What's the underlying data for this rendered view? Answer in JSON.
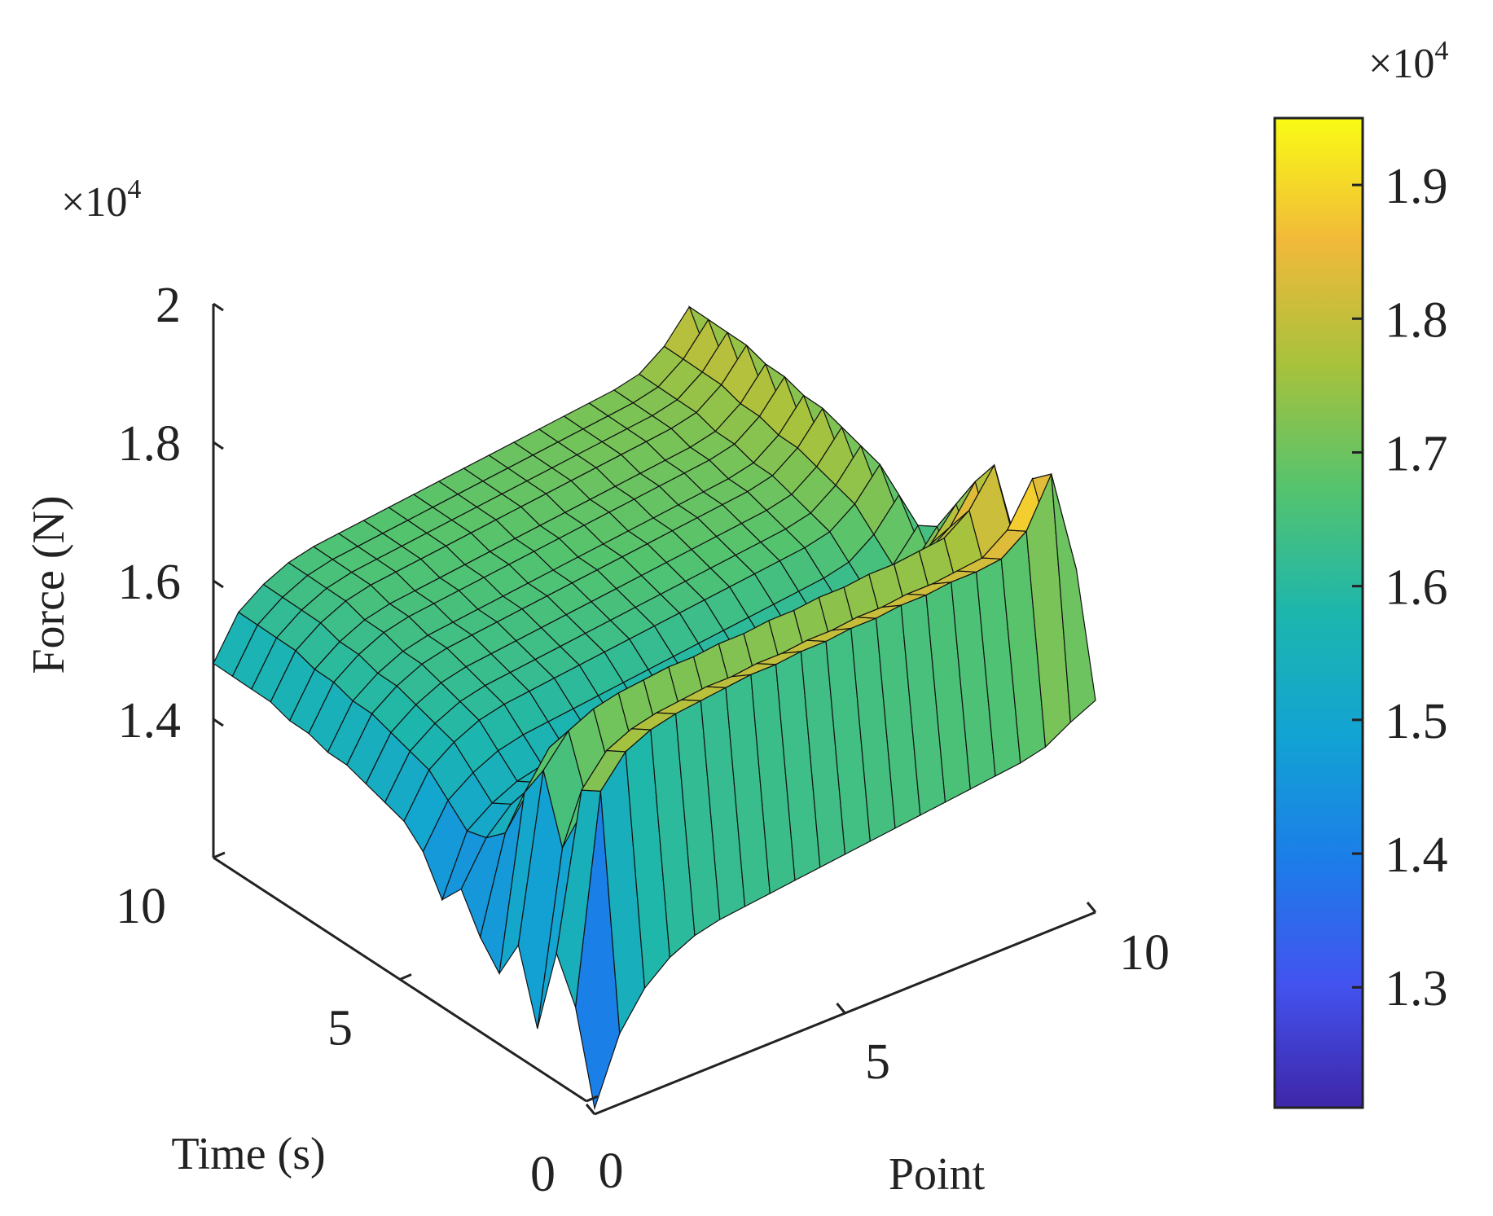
{
  "chart_data": {
    "type": "surface",
    "title": "",
    "xlabel": "Point",
    "ylabel": "Time (s)",
    "zlabel": "Force (N)",
    "xlim": [
      0,
      10
    ],
    "ylim": [
      0,
      10
    ],
    "zlim": [
      12000,
      20000
    ],
    "x_ticks": [
      "0",
      "5",
      "10"
    ],
    "y_ticks": [
      "0",
      "5",
      "10"
    ],
    "z_ticks": [
      "1.4",
      "1.6",
      "1.8",
      "2"
    ],
    "z_multiplier": "×10",
    "z_multiplier_exp": "4",
    "colormap": "parula",
    "colorbar": {
      "range": [
        12100,
        19500
      ],
      "ticks": [
        "1.3",
        "1.4",
        "1.5",
        "1.6",
        "1.7",
        "1.8",
        "1.9"
      ],
      "multiplier": "×10",
      "multiplier_exp": "4"
    },
    "point_values": [
      0,
      0.5,
      1,
      1.5,
      2,
      2.5,
      3,
      3.5,
      4,
      4.5,
      5,
      5.5,
      6,
      6.5,
      7,
      7.5,
      8,
      8.5,
      9,
      9.5,
      10
    ],
    "time_values": [
      0,
      0.5,
      1,
      1.5,
      2,
      2.5,
      3,
      3.5,
      4,
      4.5,
      5,
      5.5,
      6,
      6.5,
      7,
      7.5,
      8,
      8.5,
      9,
      9.5,
      10
    ],
    "force_values": [
      [
        12100,
        13200,
        13800,
        14150,
        14350,
        14450,
        14500,
        14550,
        14600,
        14650,
        14700,
        14750,
        14800,
        14850,
        14900,
        14950,
        15000,
        15050,
        15150,
        15400,
        15600
      ],
      [
        13600,
        17100,
        17600,
        17800,
        17900,
        17950,
        18000,
        18050,
        18050,
        18100,
        18100,
        18150,
        18150,
        18200,
        18200,
        18250,
        18250,
        18300,
        18600,
        19400,
        17600
      ],
      [
        14300,
        16900,
        17400,
        17600,
        17700,
        17750,
        17800,
        17800,
        17850,
        17850,
        17900,
        17900,
        17950,
        17950,
        18000,
        18000,
        18050,
        18100,
        18400,
        19100,
        17400
      ],
      [
        12800,
        15700,
        16300,
        16500,
        16600,
        16650,
        16700,
        16700,
        16750,
        16750,
        16800,
        16800,
        16850,
        16850,
        16900,
        16900,
        16950,
        17000,
        17300,
        17900,
        16300
      ],
      [
        14000,
        16800,
        17300,
        17500,
        17600,
        17650,
        17700,
        17700,
        17750,
        17750,
        17800,
        17800,
        17850,
        17850,
        17900,
        17900,
        17950,
        18000,
        18300,
        18900,
        17200
      ],
      [
        13300,
        16200,
        16800,
        17000,
        17100,
        17150,
        17200,
        17200,
        17250,
        17250,
        17300,
        17300,
        17350,
        17350,
        17400,
        17400,
        17450,
        17500,
        17800,
        18400,
        16700
      ],
      [
        13700,
        15300,
        15900,
        16200,
        16300,
        16350,
        16400,
        16450,
        16500,
        16550,
        16600,
        16650,
        16700,
        16750,
        16800,
        16850,
        16900,
        17000,
        17300,
        17800,
        16400
      ],
      [
        14300,
        15000,
        15400,
        15600,
        15700,
        15750,
        15800,
        15850,
        15900,
        15950,
        16000,
        16050,
        16100,
        16150,
        16200,
        16250,
        16300,
        16400,
        16700,
        17200,
        15900
      ],
      [
        13900,
        14900,
        15200,
        15400,
        15500,
        15550,
        15600,
        15650,
        15700,
        15750,
        15800,
        15850,
        15900,
        15950,
        16000,
        16050,
        16100,
        16200,
        16500,
        17000,
        15800
      ],
      [
        14500,
        15200,
        15500,
        15700,
        15800,
        15850,
        15900,
        15950,
        16000,
        16050,
        16100,
        16150,
        16200,
        16250,
        16300,
        16350,
        16400,
        16500,
        16800,
        17300,
        16100
      ],
      [
        14800,
        15500,
        15800,
        16000,
        16100,
        16150,
        16200,
        16250,
        16300,
        16350,
        16400,
        16450,
        16500,
        16550,
        16600,
        16650,
        16700,
        16800,
        17100,
        17600,
        16300
      ],
      [
        14900,
        15600,
        15900,
        16100,
        16200,
        16250,
        16300,
        16350,
        16400,
        16450,
        16500,
        16550,
        16600,
        16650,
        16700,
        16750,
        16800,
        16900,
        17200,
        17700,
        16400
      ],
      [
        15000,
        15700,
        16000,
        16200,
        16300,
        16350,
        16400,
        16450,
        16500,
        16550,
        16600,
        16650,
        16700,
        16750,
        16800,
        16850,
        16900,
        17000,
        17300,
        17800,
        16500
      ],
      [
        15100,
        15800,
        16100,
        16300,
        16400,
        16450,
        16500,
        16550,
        16600,
        16650,
        16700,
        16750,
        16800,
        16850,
        16900,
        16950,
        17000,
        17100,
        17400,
        17900,
        16600
      ],
      [
        15100,
        15800,
        16100,
        16300,
        16400,
        16450,
        16500,
        16550,
        16600,
        16650,
        16700,
        16750,
        16800,
        16850,
        16900,
        16950,
        17000,
        17100,
        17400,
        17900,
        16600
      ],
      [
        15200,
        15900,
        16200,
        16400,
        16500,
        16550,
        16600,
        16650,
        16700,
        16750,
        16800,
        16850,
        16900,
        16950,
        17000,
        17050,
        17100,
        17200,
        17500,
        18000,
        16700
      ],
      [
        15200,
        15900,
        16200,
        16400,
        16500,
        16550,
        16600,
        16650,
        16700,
        16750,
        16800,
        16850,
        16900,
        16950,
        17000,
        17050,
        17100,
        17200,
        17500,
        18000,
        16700
      ],
      [
        15300,
        16000,
        16300,
        16500,
        16600,
        16650,
        16700,
        16750,
        16800,
        16850,
        16900,
        16950,
        17000,
        17050,
        17100,
        17150,
        17200,
        17300,
        17600,
        18100,
        16800
      ],
      [
        15300,
        16000,
        16300,
        16500,
        16600,
        16650,
        16700,
        16750,
        16800,
        16850,
        16900,
        16950,
        17000,
        17050,
        17100,
        17150,
        17200,
        17300,
        17600,
        18100,
        16800
      ],
      [
        15300,
        16000,
        16300,
        16500,
        16600,
        16650,
        16700,
        16750,
        16800,
        16850,
        16900,
        16950,
        17000,
        17050,
        17100,
        17150,
        17200,
        17300,
        17600,
        18100,
        16800
      ],
      [
        15300,
        16000,
        16300,
        16500,
        16600,
        16650,
        16700,
        16750,
        16800,
        16850,
        16900,
        16950,
        17000,
        17050,
        17100,
        17150,
        17200,
        17300,
        17600,
        18100,
        16800
      ]
    ],
    "grid": false,
    "legend": "none"
  }
}
